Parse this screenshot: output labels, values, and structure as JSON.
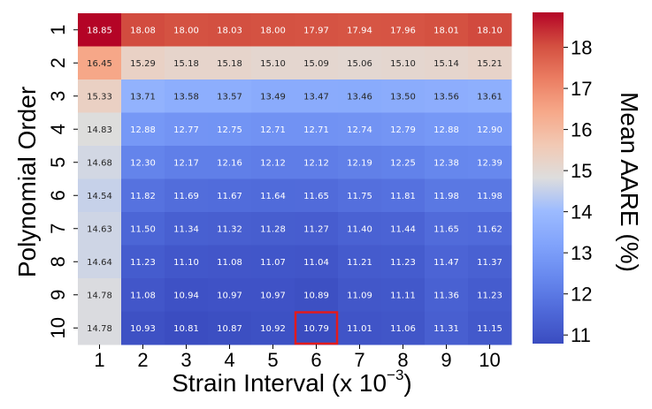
{
  "chart_data": {
    "type": "heatmap",
    "xlabel": "Strain Interval (x 10",
    "xlabel_exponent": "−3",
    "xlabel_suffix": ")",
    "ylabel": "Polynomial Order",
    "colorbar_label": "Mean AARE (%)",
    "x_categories": [
      "1",
      "2",
      "3",
      "4",
      "5",
      "6",
      "7",
      "8",
      "9",
      "10"
    ],
    "y_categories": [
      "1",
      "2",
      "3",
      "4",
      "5",
      "6",
      "7",
      "8",
      "9",
      "10"
    ],
    "values": [
      [
        18.85,
        18.08,
        18.0,
        18.03,
        18.0,
        17.97,
        17.94,
        17.96,
        18.01,
        18.1
      ],
      [
        16.45,
        15.29,
        15.18,
        15.18,
        15.1,
        15.09,
        15.06,
        15.1,
        15.14,
        15.21
      ],
      [
        15.33,
        13.71,
        13.58,
        13.57,
        13.49,
        13.47,
        13.46,
        13.5,
        13.56,
        13.61
      ],
      [
        14.83,
        12.88,
        12.77,
        12.75,
        12.71,
        12.71,
        12.74,
        12.79,
        12.88,
        12.9
      ],
      [
        14.68,
        12.3,
        12.17,
        12.16,
        12.12,
        12.12,
        12.19,
        12.25,
        12.38,
        12.39
      ],
      [
        14.54,
        11.82,
        11.69,
        11.67,
        11.64,
        11.65,
        11.75,
        11.81,
        11.98,
        11.98
      ],
      [
        14.63,
        11.5,
        11.34,
        11.32,
        11.28,
        11.27,
        11.4,
        11.44,
        11.65,
        11.62
      ],
      [
        14.64,
        11.23,
        11.1,
        11.08,
        11.07,
        11.04,
        11.21,
        11.23,
        11.47,
        11.37
      ],
      [
        14.78,
        11.08,
        10.94,
        10.97,
        10.97,
        10.89,
        11.09,
        11.11,
        11.36,
        11.23
      ],
      [
        14.78,
        10.93,
        10.81,
        10.87,
        10.92,
        10.79,
        11.01,
        11.06,
        11.31,
        11.15
      ]
    ],
    "value_format_decimals": 2,
    "colormap": "coolwarm",
    "color_range": [
      10.79,
      18.85
    ],
    "colorbar_ticks": [
      "11",
      "12",
      "13",
      "14",
      "15",
      "16",
      "17",
      "18"
    ],
    "colorbar_tick_values": [
      11,
      12,
      13,
      14,
      15,
      16,
      17,
      18
    ],
    "highlight": {
      "row": 10,
      "col": 6,
      "color": "#e31a1c"
    }
  }
}
